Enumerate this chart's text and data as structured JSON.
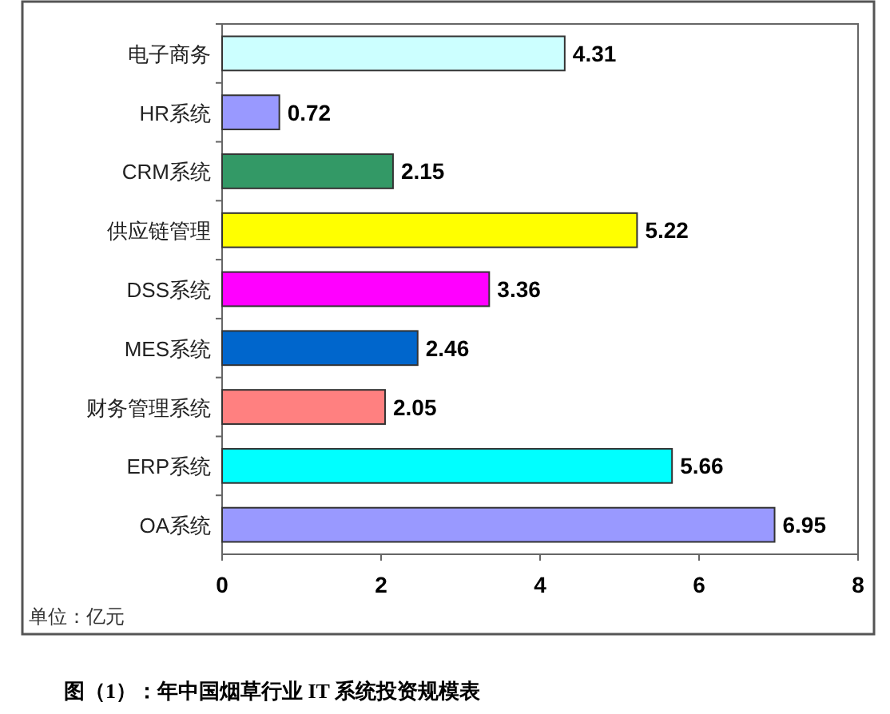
{
  "chart_data": {
    "type": "bar",
    "orientation": "horizontal",
    "categories": [
      "电子商务",
      "HR系统",
      "CRM系统",
      "供应链管理",
      "DSS系统",
      "MES系统",
      "财务管理系统",
      "ERP系统",
      "OA系统"
    ],
    "values": [
      4.31,
      0.72,
      2.15,
      5.22,
      3.36,
      2.46,
      2.05,
      5.66,
      6.95
    ],
    "colors": [
      "#ccffff",
      "#9999ff",
      "#339966",
      "#ffff00",
      "#ff00ff",
      "#0066cc",
      "#ff8080",
      "#00ffff",
      "#9999ff"
    ],
    "xlim": [
      0,
      8
    ],
    "xticks": [
      0,
      2,
      4,
      6,
      8
    ],
    "data_labels": true,
    "grid": false,
    "annotations": [
      "单位：亿元",
      "图（1）：年中国烟草行业 IT 系统投资规模表"
    ]
  }
}
